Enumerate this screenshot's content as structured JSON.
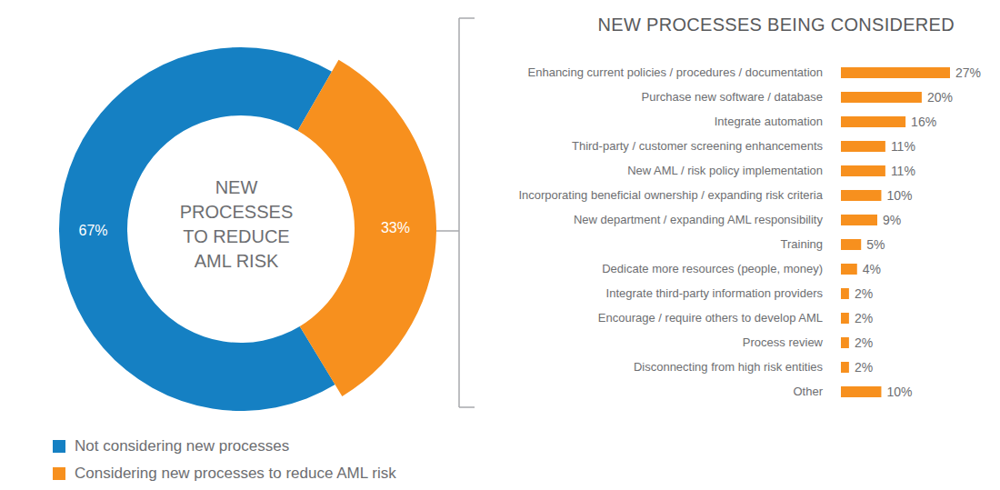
{
  "chart_data": [
    {
      "type": "pie",
      "title": "NEW PROCESSES TO REDUCE AML RISK",
      "categories": [
        "Not considering new processes",
        "Considering new processes to reduce AML risk"
      ],
      "values": [
        67,
        33
      ],
      "value_labels": [
        "67%",
        "33%"
      ],
      "colors": [
        "#1580c3",
        "#f7901e"
      ],
      "data_labels": true,
      "legend": "bottom-left"
    },
    {
      "type": "bar",
      "title": "NEW PROCESSES BEING CONSIDERED",
      "orientation": "horizontal",
      "categories": [
        "Enhancing current policies / procedures / documentation",
        "Purchase new software / database",
        "Integrate automation",
        "Third-party / customer screening enhancements",
        "New AML / risk policy implementation",
        "Incorporating beneficial ownership / expanding risk criteria",
        "New department / expanding AML responsibility",
        "Training",
        "Dedicate more resources (people, money)",
        "Integrate third-party information providers",
        "Encourage / require others to develop AML",
        "Process review",
        "Disconnecting from high risk entities",
        "Other"
      ],
      "values": [
        27,
        20,
        16,
        11,
        11,
        10,
        9,
        5,
        4,
        2,
        2,
        2,
        2,
        10
      ],
      "value_labels": [
        "27%",
        "20%",
        "16%",
        "11%",
        "11%",
        "10%",
        "9%",
        "5%",
        "4%",
        "2%",
        "2%",
        "2%",
        "2%",
        "10%"
      ],
      "color": "#f7901e",
      "xlim": [
        0,
        27
      ],
      "data_labels": true,
      "tick_labels": "y"
    }
  ]
}
